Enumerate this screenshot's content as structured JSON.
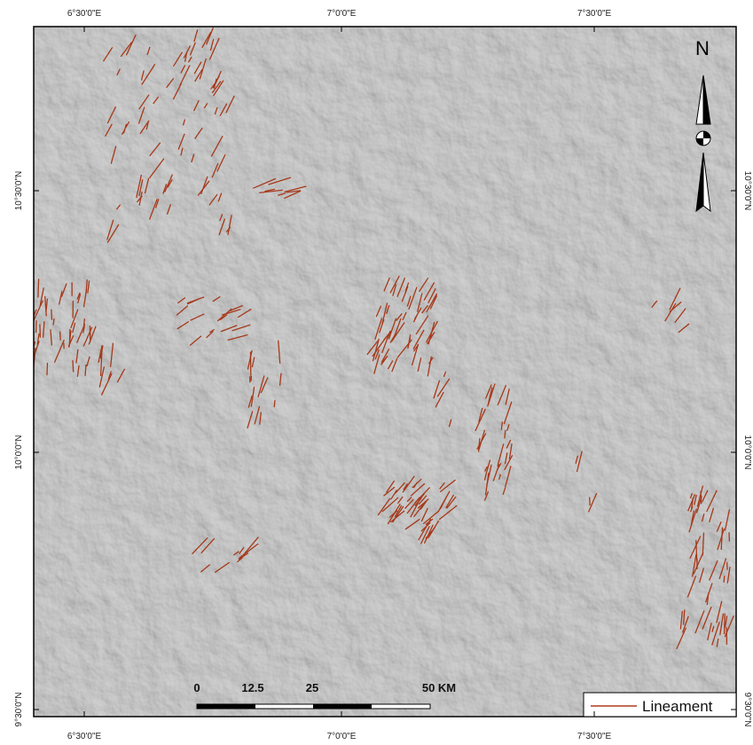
{
  "graticule": {
    "top": [
      "6°30'0\"E",
      "7°0'0\"E",
      "7°30'0\"E"
    ],
    "bottom": [
      "6°30'0\"E",
      "7°0'0\"E",
      "7°30'0\"E"
    ],
    "left": [
      "10°30'0\"N",
      "10°0'0\"N",
      "9°30'0\"N"
    ],
    "right": [
      "10°30'0\"N",
      "10°0'0\"N",
      "9°30'0\"N"
    ]
  },
  "north_arrow": {
    "label": "N"
  },
  "scale_bar": {
    "labels": [
      "0",
      "12.5",
      "25",
      "50 KM"
    ]
  },
  "legend": {
    "items": [
      {
        "label": "Lineament"
      }
    ]
  }
}
